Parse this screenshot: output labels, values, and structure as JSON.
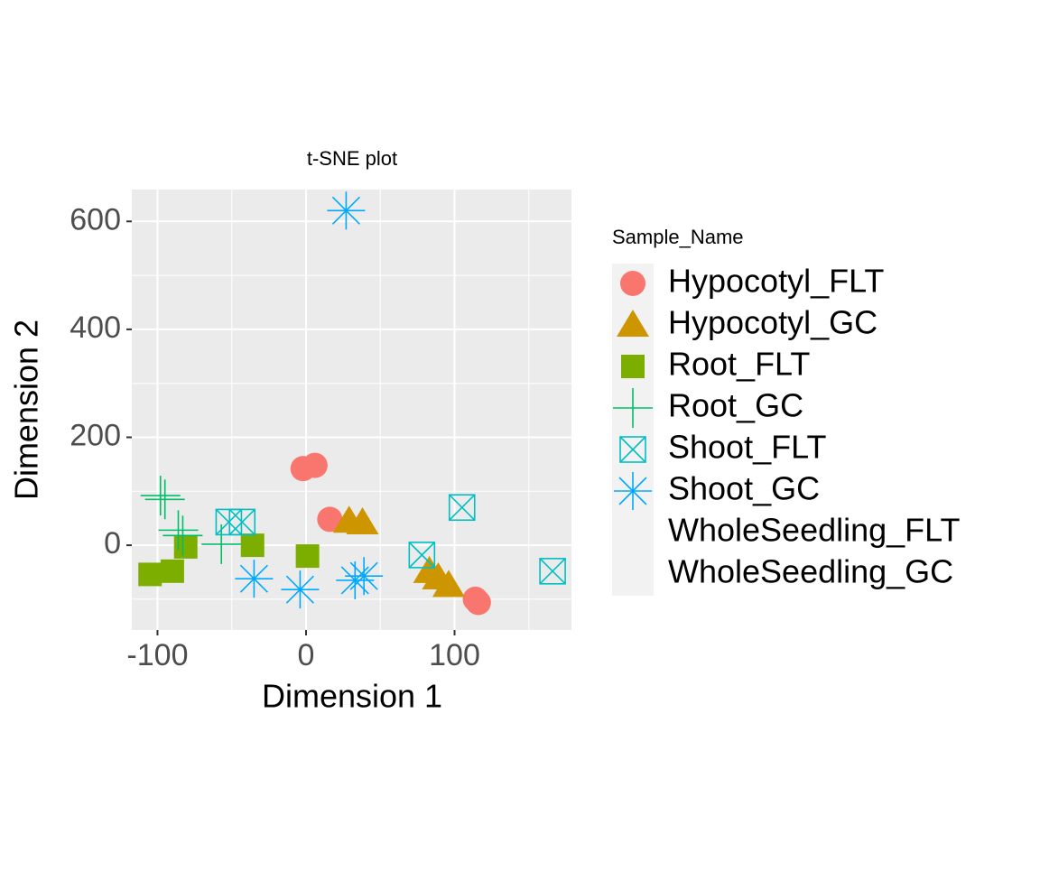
{
  "chart_data": {
    "type": "scatter",
    "title": "t-SNE plot",
    "x_label": "Dimension 1",
    "y_label": "Dimension 2",
    "legend_title": "Sample_Name",
    "xlim": [
      -117.3,
      178.7
    ],
    "ylim": [
      -157,
      659
    ],
    "xticks": [
      -100,
      0,
      100
    ],
    "yticks": [
      0,
      200,
      400,
      600
    ],
    "grid": true,
    "legend_position": "right",
    "series": [
      {
        "name": "Hypocotyl_FLT",
        "color": "#F8766D",
        "shape": "circle",
        "x": [
          -2,
          6,
          16,
          114,
          116
        ],
        "values": [
          142,
          148,
          48,
          -100,
          -106
        ]
      },
      {
        "name": "Hypocotyl_GC",
        "color": "#CD9600",
        "shape": "triangle",
        "x": [
          29,
          38,
          83,
          89,
          96
        ],
        "values": [
          45,
          42,
          -48,
          -60,
          -74
        ]
      },
      {
        "name": "Root_FLT",
        "color": "#7CAE00",
        "shape": "square",
        "x": [
          -105,
          -90,
          -81,
          -36,
          1
        ],
        "values": [
          -54,
          -48,
          -3,
          0,
          -20
        ]
      },
      {
        "name": "Root_GC",
        "color": "#00BE67",
        "shape": "plus",
        "x": [
          -98,
          -95,
          -86,
          -83,
          -57
        ],
        "values": [
          92,
          85,
          28,
          18,
          2
        ]
      },
      {
        "name": "Shoot_FLT",
        "color": "#00BFC4",
        "shape": "square-cross",
        "x": [
          -52,
          -43,
          78,
          105,
          166
        ],
        "values": [
          43,
          43,
          -18,
          70,
          -48
        ]
      },
      {
        "name": "Shoot_GC",
        "color": "#00A9FF",
        "shape": "asterisk",
        "x": [
          27,
          -35,
          -4,
          33,
          39
        ],
        "values": [
          620,
          -62,
          -82,
          -65,
          -57
        ]
      },
      {
        "name": "WholeSeedling_FLT",
        "color": "#C77CFF",
        "shape": "none",
        "x": [],
        "values": []
      },
      {
        "name": "WholeSeedling_GC",
        "color": "#FF61CC",
        "shape": "none",
        "x": [],
        "values": []
      }
    ]
  }
}
